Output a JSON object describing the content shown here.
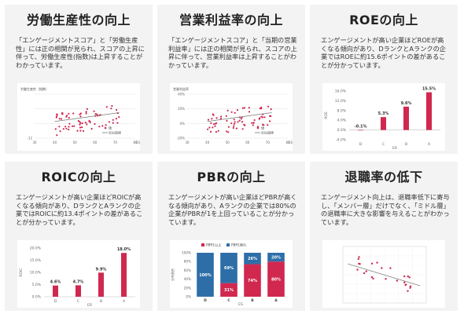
{
  "colors": {
    "accent": "#d0284f",
    "card_bg": "#f3f3f3",
    "blue": "#2e6ea8",
    "trend": "#777777"
  },
  "cards": [
    {
      "title": "労働生産性の向上",
      "text": "「エンゲージメントスコア」と「労働生産性」には正の相関が見られ、スコアの上昇に伴って、労働生産性(指数)は上昇することがわかっています。"
    },
    {
      "title": "営業利益率の向上",
      "text": "「エンゲージメントスコア」と「当期の営業利益率」には正の相関が見られ、スコアの上昇に伴って、営業利益率は上昇することがわかっています。"
    },
    {
      "title": "ROEの向上",
      "text": "エンゲージメントが高い企業ほどROEが高くなる傾向があり、DランクとAランクの企業ではROEに約15.6ポイントの差があることが分かっています。"
    },
    {
      "title": "ROICの向上",
      "text": "エンゲージメントが高い企業ほどROICが高くなる傾向があり、DランクとAランクの企業ではROICに約13.4ポイントの差があることが分かっています。"
    },
    {
      "title": "PBRの向上",
      "text": "エンゲージメントが高い企業ほどPBRが高くなる傾向があり、Aランクの企業では80%の企業がPBRが1を上回っていることが分かっています。"
    },
    {
      "title": "退職率の低下",
      "text": "エンゲージメント向上は、退職率低下に寄与し、「メンバー層」だけでなく、「ミドル層」の退職率に大きな影響を与えることがわかっています。"
    }
  ],
  "chart_data": [
    {
      "type": "scatter",
      "title": "労働生産性（指数）",
      "xlabel": "ES",
      "ylabel": "",
      "xticks": [
        "30",
        "40",
        "50",
        "60",
        "70",
        "80"
      ],
      "yticks": [
        "",
        "",
        "",
        "-12"
      ],
      "legend": [
        "値",
        "近似曲線"
      ],
      "xlim": [
        30,
        80
      ]
    },
    {
      "type": "scatter",
      "title": "営業利益率",
      "xlabel": "ES",
      "ylabel": "",
      "xticks": [
        "30",
        "40",
        "50",
        "60",
        "70",
        "80"
      ],
      "yticks": [
        "40%",
        "20%",
        "0%",
        "-20%"
      ],
      "legend": [
        "値",
        "近似曲線"
      ],
      "xlim": [
        30,
        80
      ],
      "ylim": [
        -20,
        40
      ]
    },
    {
      "type": "bar",
      "title": "",
      "xlabel": "ER",
      "ylabel": "ROE",
      "categories": [
        "D",
        "C",
        "B",
        "A"
      ],
      "values": [
        -0.1,
        5.3,
        9.6,
        15.5
      ],
      "value_labels": [
        "-0.1%",
        "5.3%",
        "9.6%",
        "15.5%"
      ],
      "yticks": [
        "16.0%",
        "12.0%",
        "8.0%",
        "4.0%",
        "0.0%",
        "-4.0%"
      ],
      "ylim": [
        -4,
        16
      ]
    },
    {
      "type": "bar",
      "title": "",
      "xlabel": "ER",
      "ylabel": "ROIC",
      "categories": [
        "D",
        "C",
        "B",
        "A"
      ],
      "values": [
        4.6,
        4.7,
        9.9,
        18.0
      ],
      "value_labels": [
        "4.6%",
        "4.7%",
        "9.9%",
        "18.0%"
      ],
      "yticks": [
        "20.0%",
        "15.0%",
        "10.0%",
        "5.0%",
        "0.0%"
      ],
      "ylim": [
        0,
        20
      ]
    },
    {
      "type": "bar",
      "title": "",
      "xlabel": "ES",
      "ylabel": "分布割合",
      "categories": [
        "D",
        "C",
        "B",
        "A"
      ],
      "series": [
        {
          "name": "PBR1以上",
          "values": [
            0,
            31,
            74,
            80
          ],
          "labels": [
            "",
            "31%",
            "74%",
            "80%"
          ]
        },
        {
          "name": "PBR1割れ",
          "values": [
            100,
            69,
            26,
            20
          ],
          "labels": [
            "100%",
            "69%",
            "26%",
            "20%"
          ]
        }
      ],
      "yticks": [
        "100%",
        "80%",
        "60%",
        "40%",
        "20%",
        "0%"
      ],
      "ylim": [
        0,
        100
      ]
    },
    {
      "type": "scatter",
      "title": "",
      "xlabel": "",
      "ylabel": "",
      "xlim": [
        0,
        1
      ]
    }
  ]
}
